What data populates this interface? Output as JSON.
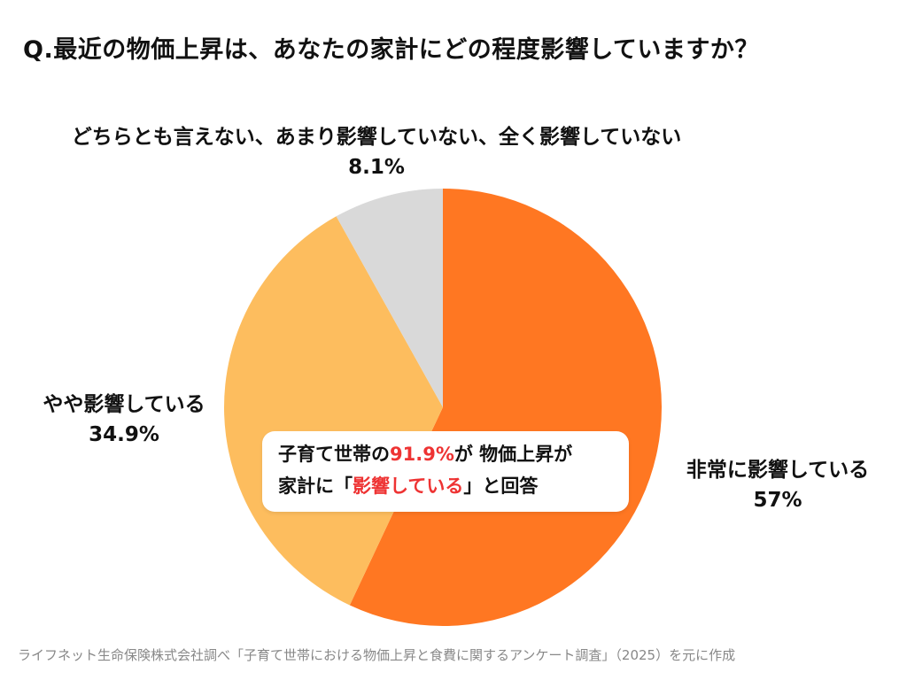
{
  "question": "Q.最近の物価上昇は、あなたの家計にどの程度影響していますか？",
  "chart_data": {
    "type": "pie",
    "start_angle_deg": 0,
    "direction": "clockwise",
    "slices": [
      {
        "label": "非常に影響している",
        "value": 57,
        "value_text": "57%",
        "color": "#ff7722"
      },
      {
        "label": "やや影響している",
        "value": 34.9,
        "value_text": "34.9%",
        "color": "#fdbd5e"
      },
      {
        "label": "どちらとも言えない、あまり影響していない、全く影響していない",
        "value": 8.1,
        "value_text": "8.1%",
        "color": "#d9d9d9"
      }
    ]
  },
  "callout": {
    "line1_a": "子育て世帯の",
    "line1_highlight": "91.9%",
    "line1_b": "が 物価上昇が",
    "line2_a": "家計に「",
    "line2_highlight": "影響している",
    "line2_b": "」と回答",
    "highlight_color": "#ee3333"
  },
  "source": "ライフネット生命保険株式会社調べ「子育て世帯における物価上昇と食費に関するアンケート調査」（2025）を元に作成"
}
